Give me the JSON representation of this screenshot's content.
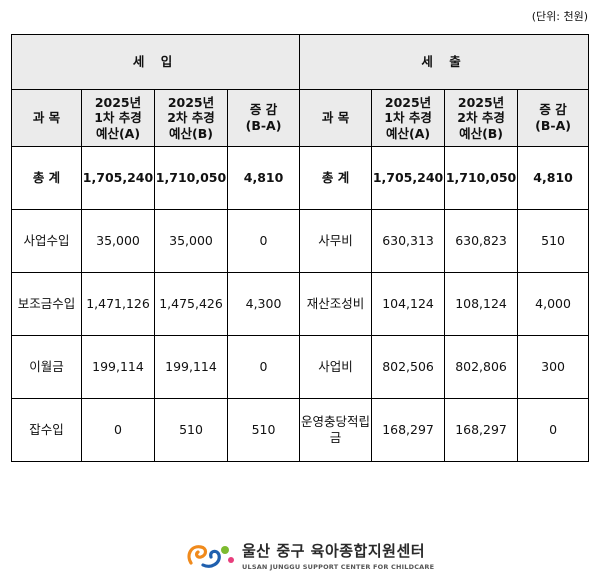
{
  "unit_note": "(단위: 천원)",
  "sections": {
    "income": "세 입",
    "expense": "세 출"
  },
  "headers": {
    "subject": "과 목",
    "first": [
      "2025년",
      "1차 추경",
      "예산(A)"
    ],
    "second": [
      "2025년",
      "2차 추경",
      "예산(B)"
    ],
    "diff": [
      "증 감",
      "(B-A)"
    ]
  },
  "rows": [
    {
      "in_subject": [
        "총 계"
      ],
      "in_a": "1,705,240",
      "in_b": "1,710,050",
      "in_diff": "4,810",
      "ex_subject": [
        "총 계"
      ],
      "ex_a": "1,705,240",
      "ex_b": "1,710,050",
      "ex_diff": "4,810"
    },
    {
      "in_subject": [
        "사업수입"
      ],
      "in_a": "35,000",
      "in_b": "35,000",
      "in_diff": "0",
      "ex_subject": [
        "사무비"
      ],
      "ex_a": "630,313",
      "ex_b": "630,823",
      "ex_diff": "510"
    },
    {
      "in_subject": [
        "보조금",
        "수입"
      ],
      "in_a": "1,471,126",
      "in_b": "1,475,426",
      "in_diff": "4,300",
      "ex_subject": [
        "재산",
        "조성비"
      ],
      "ex_a": "104,124",
      "ex_b": "108,124",
      "ex_diff": "4,000"
    },
    {
      "in_subject": [
        "이월금"
      ],
      "in_a": "199,114",
      "in_b": "199,114",
      "in_diff": "0",
      "ex_subject": [
        "사업비"
      ],
      "ex_a": "802,506",
      "ex_b": "802,806",
      "ex_diff": "300"
    },
    {
      "in_subject": [
        "잡수입"
      ],
      "in_a": "0",
      "in_b": "510",
      "in_diff": "510",
      "ex_subject": [
        "운영충당",
        "적립금"
      ],
      "ex_a": "168,297",
      "ex_b": "168,297",
      "ex_diff": "0"
    }
  ],
  "footer": {
    "name_kr": "울산 중구 육아종합지원센터",
    "name_en": "ULSAN JUNGGU SUPPORT CENTER FOR CHILDCARE",
    "colors": {
      "orange": "#f08a1c",
      "blue": "#1f5fae",
      "green": "#7dbb2f",
      "pink": "#e83e7c"
    }
  }
}
